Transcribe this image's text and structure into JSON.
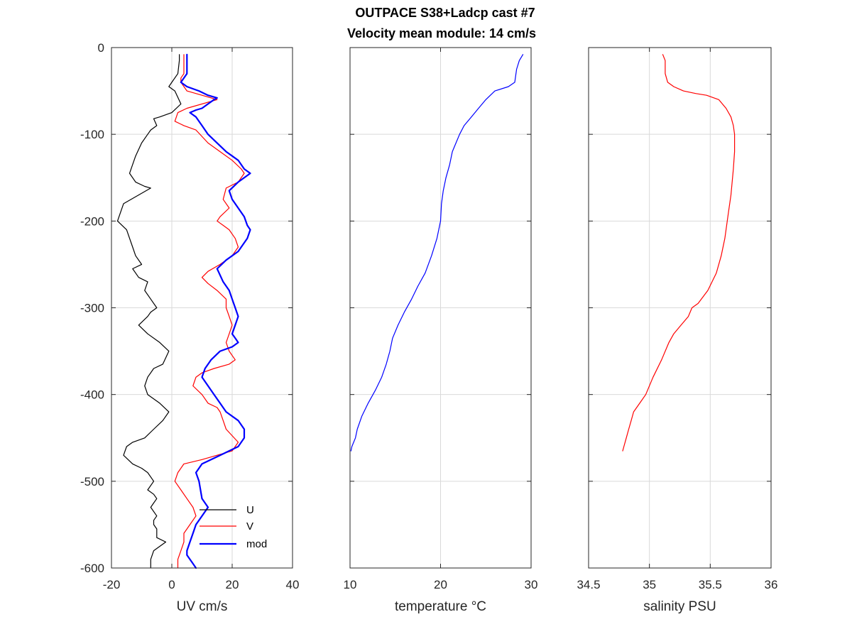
{
  "figure": {
    "title_line1": "OUTPACE S38+Ladcp cast #7",
    "title_line2": "Velocity mean module:  14 cm/s"
  },
  "chart_data": [
    {
      "type": "line",
      "id": "uv",
      "xlabel": "UV cm/s",
      "ylabel": "",
      "xlim": [
        -20,
        40
      ],
      "ylim": [
        -600,
        0
      ],
      "xticks": [
        -20,
        0,
        20,
        40
      ],
      "yticks": [
        0,
        -100,
        -200,
        -300,
        -400,
        -500,
        -600
      ],
      "grid": true,
      "legend": {
        "location": "bottom-right",
        "entries": [
          "U",
          "V",
          "mod"
        ]
      },
      "series": [
        {
          "name": "U",
          "color": "#000000",
          "line_width": 1.2,
          "x": [
            2.5,
            2.5,
            2,
            0,
            -1,
            1,
            3,
            0,
            -4,
            -6,
            -5,
            -7,
            -8,
            -10,
            -12,
            -14,
            -12,
            -9,
            -7,
            -16,
            -18,
            -15,
            -13,
            -12,
            -10,
            -13,
            -11,
            -8,
            -9,
            -7,
            -5,
            -7,
            -8,
            -11,
            -8,
            -4,
            -1,
            -3,
            -6,
            -8,
            -9,
            -8,
            -4,
            -1,
            -3,
            -6,
            -9,
            -13,
            -15,
            -16,
            -13,
            -10,
            -8,
            -6,
            -8,
            -6,
            -5,
            -6,
            -7,
            -5,
            -6,
            -6,
            -5,
            -5,
            -2,
            -4,
            -6,
            -7,
            -7
          ],
          "y": [
            -8,
            -15,
            -30,
            -40,
            -45,
            -50,
            -65,
            -75,
            -80,
            -82,
            -90,
            -95,
            -100,
            -110,
            -125,
            -145,
            -155,
            -160,
            -162,
            -180,
            -200,
            -210,
            -230,
            -240,
            -250,
            -255,
            -265,
            -270,
            -280,
            -290,
            -300,
            -305,
            -310,
            -320,
            -330,
            -340,
            -350,
            -365,
            -370,
            -380,
            -390,
            -400,
            -410,
            -420,
            -430,
            -440,
            -450,
            -455,
            -460,
            -470,
            -480,
            -485,
            -490,
            -500,
            -510,
            -515,
            -520,
            -525,
            -530,
            -540,
            -545,
            -550,
            -555,
            -565,
            -570,
            -575,
            -580,
            -590,
            -600
          ]
        },
        {
          "name": "V",
          "color": "#ff0000",
          "line_width": 1.2,
          "x": [
            4,
            4,
            4,
            3,
            3,
            5,
            15,
            5,
            2,
            1,
            4,
            8,
            12,
            16,
            20,
            23,
            24,
            22,
            18,
            17,
            19,
            16,
            15,
            17,
            19,
            20,
            21,
            22,
            20,
            16,
            12,
            10,
            12,
            15,
            18,
            18,
            19,
            20,
            19,
            18,
            19,
            20,
            21,
            19,
            14,
            10,
            8,
            7,
            10,
            12,
            15,
            16,
            17,
            18,
            22,
            20,
            10,
            4,
            2,
            1,
            3,
            5,
            7,
            8,
            6,
            5,
            4,
            4,
            3,
            2,
            2
          ],
          "y": [
            -8,
            -20,
            -30,
            -35,
            -40,
            -50,
            -60,
            -70,
            -75,
            -85,
            -90,
            -95,
            -110,
            -120,
            -130,
            -140,
            -145,
            -155,
            -162,
            -175,
            -185,
            -195,
            -200,
            -205,
            -210,
            -215,
            -220,
            -230,
            -240,
            -250,
            -258,
            -265,
            -272,
            -280,
            -290,
            -300,
            -310,
            -320,
            -330,
            -340,
            -350,
            -355,
            -360,
            -365,
            -370,
            -375,
            -380,
            -390,
            -400,
            -410,
            -415,
            -420,
            -430,
            -440,
            -455,
            -465,
            -475,
            -480,
            -490,
            -500,
            -510,
            -520,
            -530,
            -540,
            -550,
            -555,
            -560,
            -570,
            -580,
            -590,
            -600
          ]
        },
        {
          "name": "mod",
          "color": "#0000ff",
          "line_width": 2.2,
          "x": [
            5,
            5,
            5,
            3,
            5,
            9,
            12,
            15,
            14,
            12,
            10,
            8,
            6,
            8,
            10,
            12,
            15,
            18,
            20,
            22,
            24,
            26,
            22,
            19,
            20,
            22,
            24,
            25,
            26,
            25,
            22,
            18,
            15,
            17,
            19,
            20,
            21,
            22,
            21,
            20,
            21,
            22,
            20,
            16,
            13,
            11,
            10,
            12,
            14,
            16,
            18,
            22,
            24,
            24,
            22,
            16,
            10,
            8,
            9,
            10,
            12,
            10,
            8,
            7,
            6,
            5,
            5,
            6,
            7,
            8
          ],
          "y": [
            -8,
            -20,
            -30,
            -40,
            -45,
            -50,
            -55,
            -58,
            -60,
            -65,
            -70,
            -72,
            -75,
            -80,
            -90,
            -100,
            -110,
            -120,
            -125,
            -130,
            -140,
            -145,
            -155,
            -165,
            -175,
            -185,
            -195,
            -205,
            -210,
            -220,
            -235,
            -245,
            -255,
            -270,
            -280,
            -290,
            -300,
            -310,
            -320,
            -330,
            -335,
            -340,
            -345,
            -350,
            -360,
            -370,
            -380,
            -390,
            -400,
            -410,
            -420,
            -430,
            -440,
            -450,
            -460,
            -470,
            -480,
            -490,
            -500,
            -520,
            -530,
            -540,
            -550,
            -560,
            -570,
            -580,
            -585,
            -590,
            -595,
            -600
          ]
        }
      ]
    },
    {
      "type": "line",
      "id": "temperature",
      "xlabel": "temperature °C",
      "ylabel": "",
      "xlim": [
        10,
        30
      ],
      "ylim": [
        -600,
        0
      ],
      "xticks": [
        10,
        20,
        30
      ],
      "yticks": [
        0,
        -100,
        -200,
        -300,
        -400,
        -500,
        -600
      ],
      "grid": true,
      "series": [
        {
          "name": "",
          "color": "#0000ff",
          "line_width": 1.2,
          "x": [
            29.1,
            28.7,
            28.4,
            28.2,
            27.5,
            26,
            25,
            24.2,
            23.4,
            22.6,
            22.1,
            21.7,
            21.3,
            21,
            20.6,
            20.3,
            20.1,
            20,
            19.6,
            19,
            18.3,
            17.5,
            16.8,
            16,
            15.3,
            14.7,
            14.4,
            14,
            13.5,
            12.8,
            12,
            11.3,
            10.8,
            10.6,
            10.4,
            10.2,
            10.1
          ],
          "y": [
            -8,
            -15,
            -25,
            -40,
            -45,
            -50,
            -60,
            -70,
            -80,
            -90,
            -100,
            -110,
            -120,
            -135,
            -150,
            -165,
            -180,
            -200,
            -220,
            -240,
            -260,
            -275,
            -290,
            -305,
            -320,
            -335,
            -350,
            -365,
            -380,
            -395,
            -410,
            -425,
            -440,
            -450,
            -455,
            -460,
            -465
          ]
        }
      ]
    },
    {
      "type": "line",
      "id": "salinity",
      "xlabel": "salinity PSU",
      "ylabel": "",
      "xlim": [
        34.5,
        36
      ],
      "ylim": [
        -600,
        0
      ],
      "xticks": [
        34.5,
        35,
        35.5,
        36
      ],
      "xtick_labels": [
        "34.5",
        "35",
        "35.5",
        "36"
      ],
      "yticks": [
        0,
        -100,
        -200,
        -300,
        -400,
        -500,
        -600
      ],
      "grid": true,
      "series": [
        {
          "name": "",
          "color": "#ff0000",
          "line_width": 1.2,
          "x": [
            35.11,
            35.13,
            35.13,
            35.13,
            35.15,
            35.2,
            35.28,
            35.38,
            35.47,
            35.57,
            35.63,
            35.67,
            35.69,
            35.7,
            35.7,
            35.69,
            35.67,
            35.65,
            35.63,
            35.62,
            35.59,
            35.55,
            35.48,
            35.4,
            35.35,
            35.32,
            35.26,
            35.2,
            35.16,
            35.1,
            35.03,
            34.97,
            34.92,
            34.87,
            34.85,
            34.83,
            34.81,
            34.79,
            34.78
          ],
          "y": [
            -8,
            -15,
            -20,
            -30,
            -40,
            -45,
            -50,
            -53,
            -55,
            -60,
            -70,
            -80,
            -90,
            -100,
            -120,
            -140,
            -170,
            -190,
            -210,
            -220,
            -240,
            -260,
            -280,
            -295,
            -300,
            -310,
            -320,
            -330,
            -340,
            -360,
            -380,
            -400,
            -410,
            -420,
            -430,
            -440,
            -450,
            -460,
            -465
          ]
        }
      ]
    }
  ]
}
